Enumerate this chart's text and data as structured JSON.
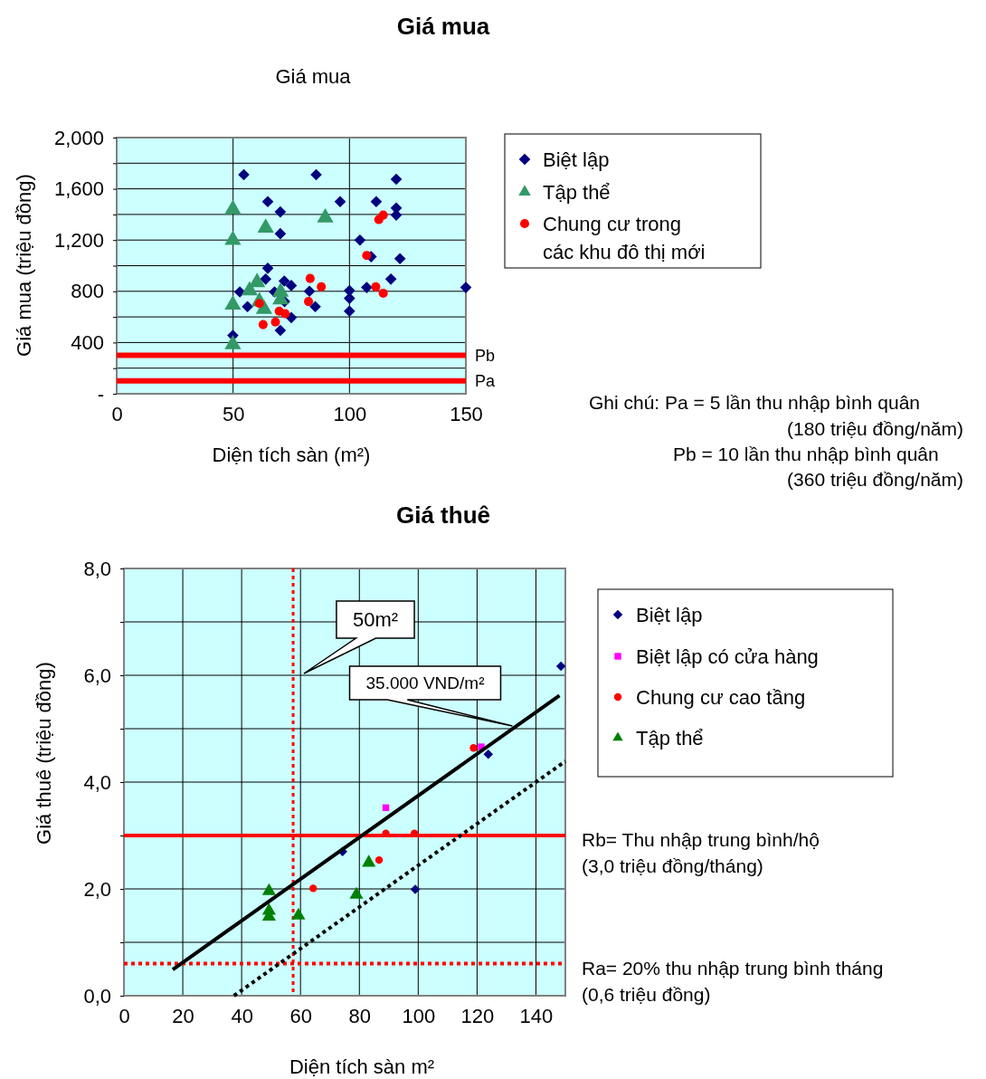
{
  "chart_data": [
    {
      "type": "scatter",
      "title": "Giá mua",
      "subtitle": "Giá mua",
      "xlabel": "Diện tích sàn (m²)",
      "ylabel": "Giá mua (triệu đồng)",
      "xlim": [
        0,
        150
      ],
      "xticks": [
        0,
        50,
        100,
        150
      ],
      "ylim": [
        0,
        2000
      ],
      "yticks": [
        {
          "value": 0,
          "label": "-"
        },
        {
          "value": 200,
          "label": null
        },
        400,
        {
          "value": 600,
          "label": null
        },
        800,
        {
          "value": 1000,
          "label": null
        },
        {
          "value": 1200,
          "label": "1,200"
        },
        {
          "value": 1400,
          "label": null
        },
        {
          "value": 1600,
          "label": "1,600"
        },
        {
          "value": 1800,
          "label": null
        },
        {
          "value": 2000,
          "label": "2,000"
        }
      ],
      "grid": true,
      "legend": "right",
      "series": [
        {
          "name": "Biệt lập",
          "color": "#000080",
          "marker": "diamond",
          "x": [
            54.6,
            85.7,
            120.1,
            64.9,
            96,
            111.5,
            120.1,
            120.1,
            70.3,
            70.3,
            104.5,
            109.3,
            121.7,
            64.9,
            64,
            117.8,
            72,
            75,
            52.9,
            67.8,
            82.8,
            100,
            107.4,
            150,
            72.1,
            56.2,
            85.3,
            100,
            100,
            75,
            70.3,
            49.9
          ],
          "values": [
            1710,
            1710,
            1675,
            1500,
            1500,
            1500,
            1450,
            1395,
            1420,
            1250,
            1200,
            1070,
            1055,
            980,
            895,
            895,
            880,
            845,
            795,
            795,
            800,
            805,
            830,
            830,
            720,
            680,
            680,
            745,
            645,
            595,
            495,
            455
          ]
        },
        {
          "name": "Tập thể",
          "color": "#339966",
          "marker": "triangle",
          "x": [
            49.9,
            49.9,
            64,
            89.6,
            60.3,
            57.1,
            70.4,
            70.4,
            49.9,
            61.3,
            63.3,
            49.9
          ],
          "values": [
            1440,
            1200,
            1295,
            1375,
            870,
            805,
            795,
            735,
            695,
            720,
            660,
            385
          ]
        },
        {
          "name": "Chung cư trong các khu đô thị mới",
          "color": "#ff0000",
          "marker": "circle",
          "x": [
            114.5,
            112.6,
            107.4,
            83.1,
            87.9,
            111.3,
            114.5,
            82.4,
            61.3,
            69.8,
            72.4,
            68.2,
            62.9
          ],
          "values": [
            1395,
            1360,
            1080,
            900,
            835,
            835,
            785,
            720,
            705,
            645,
            625,
            560,
            540
          ]
        }
      ],
      "ref_lines": [
        {
          "axis": "y",
          "value": 300,
          "label": "Pb",
          "color": "#ff0000",
          "line_style": "solid"
        },
        {
          "axis": "y",
          "value": 100,
          "label": "Pa",
          "color": "#ff0000",
          "line_style": "solid"
        }
      ],
      "annotations": [
        "Ghi chú: Pa = 5 lần thu nhập bình quân",
        "(180 triệu đồng/năm)",
        "Pb  = 10 lần thu nhập bình quân",
        "(360 triệu đồng/năm)"
      ]
    },
    {
      "type": "scatter",
      "title": "Giá thuê",
      "xlabel": "Diện tích sàn m²",
      "ylabel": "Giá thuê (triệu đồng)",
      "xlim": [
        0,
        150
      ],
      "xticks": [
        0,
        20,
        40,
        60,
        80,
        100,
        120,
        140
      ],
      "ylim": [
        0,
        8
      ],
      "yticks": [
        {
          "value": 0,
          "label": "0,0"
        },
        {
          "value": 1,
          "label": null
        },
        {
          "value": 2,
          "label": "2,0"
        },
        {
          "value": 3,
          "label": null
        },
        {
          "value": 4,
          "label": "4,0"
        },
        {
          "value": 5,
          "label": null
        },
        {
          "value": 6,
          "label": "6,0"
        },
        {
          "value": 7,
          "label": null
        },
        {
          "value": 8,
          "label": "8,0"
        }
      ],
      "grid": true,
      "legend": "right",
      "series": [
        {
          "name": "Biệt lập",
          "color": "#000080",
          "marker": "diamond",
          "x": [
            148.5,
            123.8,
            74.3,
            99
          ],
          "values": [
            6.17,
            4.52,
            2.7,
            1.99
          ]
        },
        {
          "name": "Biệt lập có cửa hàng",
          "color": "#ff00ff",
          "marker": "square",
          "x": [
            121.4,
            89
          ],
          "values": [
            4.66,
            3.52
          ]
        },
        {
          "name": "Chung cư cao tầng",
          "color": "#ff0000",
          "marker": "circle",
          "x": [
            118.8,
            89,
            98.7,
            86.7,
            64.3
          ],
          "values": [
            4.64,
            3.04,
            3.04,
            2.54,
            2.01
          ]
        },
        {
          "name": "Tập thể",
          "color": "#008000",
          "marker": "triangle",
          "x": [
            49.3,
            49.3,
            49.3,
            59.3,
            79,
            83.2
          ],
          "values": [
            1.96,
            1.59,
            1.48,
            1.5,
            1.89,
            2.49
          ]
        },
        {
          "type": "line",
          "color": "#000000",
          "line_style": "solid",
          "x": [
            16.6,
            148
          ],
          "values": [
            0.49,
            5.62
          ]
        },
        {
          "type": "line",
          "color": "#000000",
          "line_style": "dotted",
          "x": [
            37.4,
            150
          ],
          "values": [
            0,
            4.39
          ]
        }
      ],
      "ref_lines": [
        {
          "axis": "y",
          "value": 3,
          "label": "Rb= Thu nhập trung bình/hộ\n(3,0 triệu đồng/tháng)",
          "color": "#ff0000",
          "line_style": "solid"
        },
        {
          "axis": "y",
          "value": 0.6,
          "label": "Ra= 20% thu nhập trung bình tháng\n(0,6 triệu đồng)",
          "color": "#ff0000",
          "line_style": "dotted"
        },
        {
          "axis": "x",
          "value": 57.5,
          "color": "#ff0000",
          "line_style": "dotted"
        }
      ],
      "annotations": [
        "50m²",
        {
          "text": "35.000 VND/m²",
          "x": 132,
          "y": 5.05
        }
      ]
    }
  ]
}
